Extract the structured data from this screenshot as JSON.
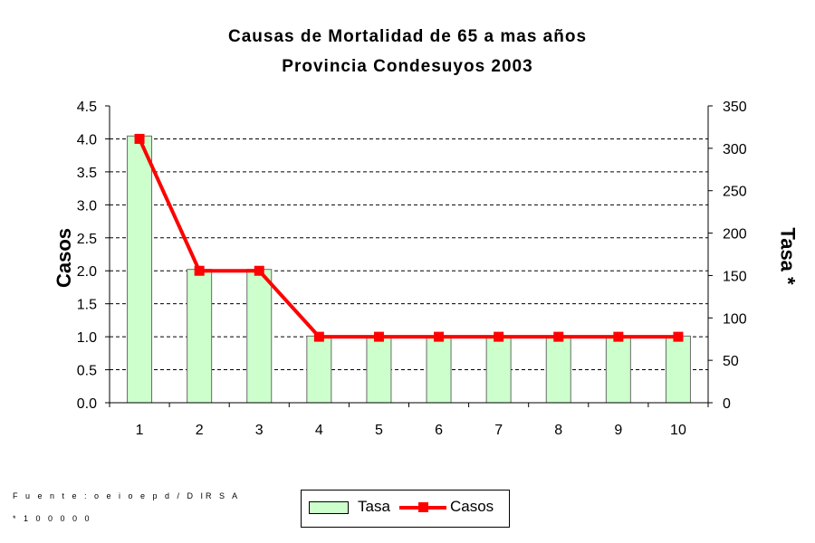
{
  "chart_data": {
    "type": "bar",
    "title": "Causas de Mortalidad de 65 a mas años",
    "subtitle": "Provincia Condesuyos 2003",
    "categories": [
      "1",
      "2",
      "3",
      "4",
      "5",
      "6",
      "7",
      "8",
      "9",
      "10"
    ],
    "series": [
      {
        "name": "Tasa",
        "type": "bar",
        "axis": "right",
        "color": "#ccffcc",
        "values": [
          314.5,
          157.2,
          157.2,
          78.6,
          78.6,
          78.6,
          78.6,
          78.6,
          78.6,
          78.6
        ]
      },
      {
        "name": "Casos",
        "type": "line",
        "axis": "left",
        "color": "#ff0000",
        "values": [
          4,
          2,
          2,
          1,
          1,
          1,
          1,
          1,
          1,
          1
        ]
      }
    ],
    "ylabel": "Casos",
    "ylabel_right": "Tasa *",
    "xlabel": "",
    "ylim": [
      0,
      4.5
    ],
    "ylim_right": [
      0,
      350
    ],
    "yticks": [
      "0.0",
      "0.5",
      "1.0",
      "1.5",
      "2.0",
      "2.5",
      "3.0",
      "3.5",
      "4.0",
      "4.5"
    ],
    "yticks_right": [
      "0",
      "50",
      "100",
      "150",
      "200",
      "250",
      "300",
      "350"
    ],
    "grid": "horizontal dashed",
    "legend": "bottom"
  },
  "footnotes": {
    "source": "F u e n t e : o e i o e p d / D IR S A",
    "rate_note": "* 1 0 0 0 0 0"
  }
}
